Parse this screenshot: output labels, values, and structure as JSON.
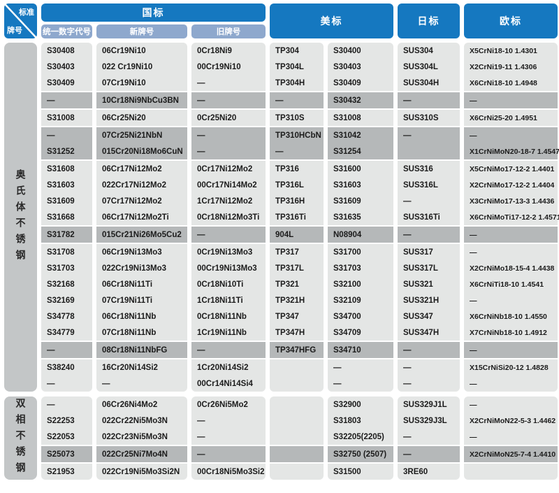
{
  "table": {
    "corner": {
      "top_label": "标准",
      "bottom_label": "牌号"
    },
    "groups": [
      {
        "label": "国标",
        "span": 3
      },
      {
        "label": "美标",
        "span": 2
      },
      {
        "label": "日标",
        "span": 1
      },
      {
        "label": "欧标",
        "span": 1
      }
    ],
    "sub_headers": [
      "统一数字代号",
      "新牌号",
      "旧牌号"
    ],
    "sections": [
      {
        "label": "奥氏体不锈钢",
        "rows": [
          {
            "dark": false,
            "cells": [
              "S30408",
              "06Cr19Ni10",
              "0Cr18Ni9",
              "TP304",
              "S30400",
              "SUS304",
              "X5CrNi18-10 1.4301"
            ]
          },
          {
            "dark": false,
            "cells": [
              "S30403",
              "022 Cr19Ni10",
              "00Cr19Ni10",
              "TP304L",
              "S30403",
              "SUS304L",
              "X2CrNi19-11 1.4306"
            ]
          },
          {
            "dark": false,
            "cells": [
              "S30409",
              "07Cr19Ni10",
              "—",
              "TP304H",
              "S30409",
              "SUS304H",
              "X6CrNi18-10 1.4948"
            ]
          },
          {
            "dark": true,
            "cells": [
              "—",
              "10Cr18Ni9NbCu3BN",
              "—",
              "—",
              "S30432",
              "—",
              "—"
            ]
          },
          {
            "dark": false,
            "cells": [
              "S31008",
              "06Cr25Ni20",
              "0Cr25Ni20",
              "TP310S",
              "S31008",
              "SUS310S",
              "X6CrNi25-20 1.4951"
            ]
          },
          {
            "dark": true,
            "cells": [
              "—",
              "07Cr25Ni21NbN",
              "—",
              "TP310HCbN",
              "S31042",
              "—",
              "—"
            ]
          },
          {
            "dark": true,
            "cells": [
              "S31252",
              "015Cr20Ni18Mo6CuN",
              "—",
              "—",
              "S31254",
              "",
              "X1CrNiMoN20-18-7 1.4547"
            ]
          },
          {
            "dark": false,
            "cells": [
              "S31608",
              "06Cr17Ni12Mo2",
              "0Cr17Ni12Mo2",
              "TP316",
              "S31600",
              "SUS316",
              "X5CrNiMo17-12-2 1.4401"
            ]
          },
          {
            "dark": false,
            "cells": [
              "S31603",
              "022Cr17Ni12Mo2",
              "00Cr17Ni14Mo2",
              "TP316L",
              "S31603",
              "SUS316L",
              "X2CrNiMo17-12-2 1.4404"
            ]
          },
          {
            "dark": false,
            "cells": [
              "S31609",
              "07Cr17Ni12Mo2",
              "1Cr17Ni12Mo2",
              "TP316H",
              "S31609",
              "—",
              "X3CrNiMo17-13-3 1.4436"
            ]
          },
          {
            "dark": false,
            "cells": [
              "S31668",
              "06Cr17Ni12Mo2Ti",
              "0Cr18Ni12Mo3Ti",
              "TP316Ti",
              "S31635",
              "SUS316Ti",
              "X6CrNiMoTi17-12-2 1.4571"
            ]
          },
          {
            "dark": true,
            "cells": [
              "S31782",
              "015Cr21Ni26Mo5Cu2",
              "—",
              "904L",
              "N08904",
              "—",
              "—"
            ]
          },
          {
            "dark": false,
            "cells": [
              "S31708",
              "06Cr19Ni13Mo3",
              "0Cr19Ni13Mo3",
              "TP317",
              "S31700",
              "SUS317",
              "—"
            ]
          },
          {
            "dark": false,
            "cells": [
              "S31703",
              "022Cr19Ni13Mo3",
              "00Cr19Ni13Mo3",
              "TP317L",
              "S31703",
              "SUS317L",
              "X2CrNiMo18-15-4 1.4438"
            ]
          },
          {
            "dark": false,
            "cells": [
              "S32168",
              "06Cr18Ni11Ti",
              "0Cr18Ni10Ti",
              "TP321",
              "S32100",
              "SUS321",
              "X6CrNiTi18-10 1.4541"
            ]
          },
          {
            "dark": false,
            "cells": [
              "S32169",
              "07Cr19Ni11Ti",
              "1Cr18Ni11Ti",
              "TP321H",
              "S32109",
              "SUS321H",
              "—"
            ]
          },
          {
            "dark": false,
            "cells": [
              "S34778",
              "06Cr18Ni11Nb",
              "0Cr18Ni11Nb",
              "TP347",
              "S34700",
              "SUS347",
              "X6CrNiNb18-10 1.4550"
            ]
          },
          {
            "dark": false,
            "cells": [
              "S34779",
              "07Cr18Ni11Nb",
              "1Cr19Ni11Nb",
              "TP347H",
              "S34709",
              "SUS347H",
              "X7CrNiNb18-10 1.4912"
            ]
          },
          {
            "dark": true,
            "cells": [
              "—",
              "08Cr18Ni11NbFG",
              "—",
              "TP347HFG",
              "S34710",
              "—",
              "—"
            ]
          },
          {
            "dark": false,
            "cells": [
              "S38240",
              "16Cr20Ni14Si2",
              "1Cr20Ni14Si2",
              "",
              "—",
              "—",
              "X15CrNiSi20-12 1.4828"
            ]
          },
          {
            "dark": false,
            "cells": [
              "—",
              "—",
              "00Cr14Ni14Si4",
              "",
              "—",
              "—",
              "—"
            ]
          }
        ]
      },
      {
        "label": "双相不锈钢",
        "rows": [
          {
            "dark": false,
            "cells": [
              "—",
              "06Cr26Ni4Mo2",
              "0Cr26Ni5Mo2",
              "",
              "S32900",
              "SUS329J1L",
              "—"
            ]
          },
          {
            "dark": false,
            "cells": [
              "S22253",
              "022Cr22Ni5Mo3N",
              "—",
              "",
              "S31803",
              "SUS329J3L",
              "X2CrNiMoN22-5-3 1.4462"
            ]
          },
          {
            "dark": false,
            "cells": [
              "S22053",
              "022Cr23Ni5Mo3N",
              "—",
              "",
              "S32205(2205)",
              "—",
              "—"
            ]
          },
          {
            "dark": true,
            "cells": [
              "S25073",
              "022Cr25Ni7Mo4N",
              "—",
              "",
              "S32750 (2507)",
              "—",
              "X2CrNiMoN25-7-4 1.4410"
            ]
          },
          {
            "dark": false,
            "cells": [
              "S21953",
              "022Cr19Ni5Mo3Si2N",
              "00Cr18Ni5Mo3Si2",
              "",
              "S31500",
              "3RE60",
              ""
            ]
          }
        ]
      }
    ]
  },
  "colors": {
    "header_blue": "#1578c0",
    "subheader_blue": "#8ea8cd",
    "row_light": "#e4e6e5",
    "row_dark": "#b5b8b9",
    "label_gray": "#c3c6c7",
    "text": "#1b1b1b"
  }
}
